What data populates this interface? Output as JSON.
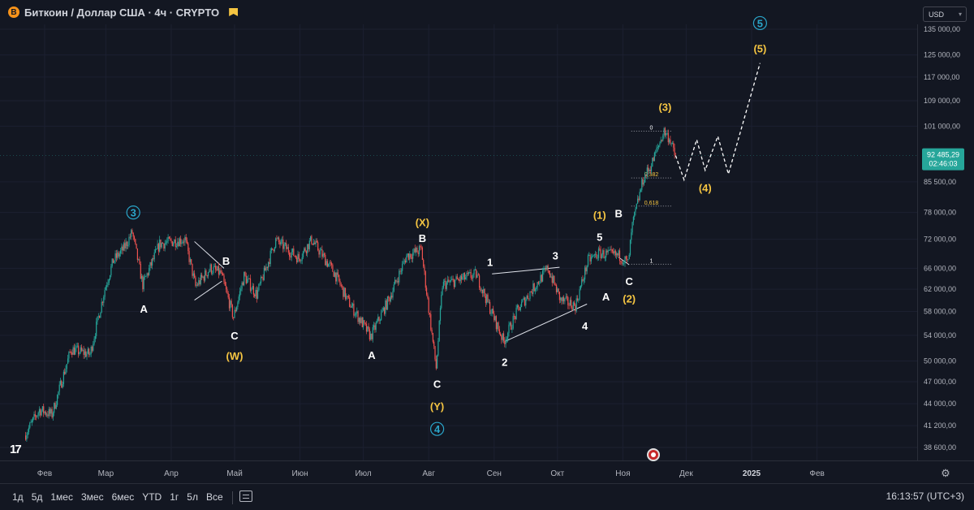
{
  "header": {
    "symbol_icon": "bitcoin-icon",
    "title": "Биткоин / Доллар США · 4ч · CRYPTO",
    "flag_icon": "flag-icon"
  },
  "currency": {
    "label": "USD"
  },
  "bottom_bar": {
    "ranges": [
      "1д",
      "5д",
      "1мес",
      "3мес",
      "6мес",
      "YTD",
      "1г",
      "5л",
      "Все"
    ],
    "clock": "16:13:57 (UTC+3)"
  },
  "colors": {
    "background": "#131722",
    "up": "#26a69a",
    "down": "#ef5350",
    "wave_white": "#ffffff",
    "wave_yellow": "#f5c542",
    "wave_cyan": "#2aa5c9",
    "price_tag": "#26a69a"
  },
  "chart_data": {
    "type": "candlestick",
    "title": "Биткоин / Доллар США · 4ч · CRYPTO",
    "timeframe": "4ч",
    "currency": "USD",
    "y_scale": "log",
    "ylim": [
      37300,
      142000
    ],
    "price_ticks": [
      "135 000,00",
      "125 000,00",
      "117 000,00",
      "109 000,00",
      "101 000,00",
      "85 500,00",
      "78 000,00",
      "72 000,00",
      "66 000,00",
      "62 000,00",
      "58 000,00",
      "54 000,00",
      "50 000,00",
      "47 000,00",
      "44 000,00",
      "41 200,00",
      "38 600,00"
    ],
    "price_tick_values": [
      135000,
      125000,
      117000,
      109000,
      101000,
      85500,
      78000,
      72000,
      66000,
      62000,
      58000,
      54000,
      50000,
      47000,
      44000,
      41200,
      38600
    ],
    "time_labels": [
      "Фев",
      "Мар",
      "Апр",
      "Май",
      "Июн",
      "Июл",
      "Авг",
      "Сен",
      "Окт",
      "Ноя",
      "Дек",
      "2025",
      "Фев"
    ],
    "time_label_dates": [
      "2024-02-01",
      "2024-03-01",
      "2024-04-01",
      "2024-05-01",
      "2024-06-01",
      "2024-07-01",
      "2024-08-01",
      "2024-09-01",
      "2024-10-01",
      "2024-11-01",
      "2024-12-01",
      "2025-01-01",
      "2025-02-01"
    ],
    "current_price": {
      "value": 92485.29,
      "label": "92 485,29",
      "countdown": "02:46:03"
    },
    "price_path": [
      [
        "2024-01-23",
        40000
      ],
      [
        "2024-01-30",
        43200
      ],
      [
        "2024-02-05",
        42600
      ],
      [
        "2024-02-14",
        51800
      ],
      [
        "2024-02-23",
        51000
      ],
      [
        "2024-03-01",
        62000
      ],
      [
        "2024-03-05",
        67500
      ],
      [
        "2024-03-10",
        70000
      ],
      [
        "2024-03-14",
        73500
      ],
      [
        "2024-03-19",
        62800
      ],
      [
        "2024-03-27",
        71000
      ],
      [
        "2024-04-08",
        72000
      ],
      [
        "2024-04-13",
        62500
      ],
      [
        "2024-04-20",
        66000
      ],
      [
        "2024-04-25",
        65000
      ],
      [
        "2024-05-01",
        57000
      ],
      [
        "2024-05-06",
        64500
      ],
      [
        "2024-05-12",
        61000
      ],
      [
        "2024-05-21",
        71800
      ],
      [
        "2024-06-01",
        68000
      ],
      [
        "2024-06-07",
        71900
      ],
      [
        "2024-06-18",
        65000
      ],
      [
        "2024-06-24",
        60000
      ],
      [
        "2024-07-05",
        53800
      ],
      [
        "2024-07-14",
        60500
      ],
      [
        "2024-07-22",
        68500
      ],
      [
        "2024-07-29",
        69800
      ],
      [
        "2024-08-05",
        49000
      ],
      [
        "2024-08-08",
        62800
      ],
      [
        "2024-08-24",
        64800
      ],
      [
        "2024-09-06",
        53000
      ],
      [
        "2024-09-13",
        58500
      ],
      [
        "2024-09-27",
        66000
      ],
      [
        "2024-10-03",
        60000
      ],
      [
        "2024-10-10",
        59000
      ],
      [
        "2024-10-16",
        67500
      ],
      [
        "2024-10-21",
        69000
      ],
      [
        "2024-10-31",
        68500
      ],
      [
        "2024-11-04",
        67000
      ],
      [
        "2024-11-06",
        75000
      ],
      [
        "2024-11-11",
        86000
      ],
      [
        "2024-11-15",
        90000
      ],
      [
        "2024-11-21",
        99500
      ],
      [
        "2024-11-24",
        97000
      ],
      [
        "2024-11-26",
        92485
      ]
    ],
    "projection_path": [
      [
        "2024-11-26",
        92485
      ],
      [
        "2024-11-30",
        86000
      ],
      [
        "2024-12-06",
        97000
      ],
      [
        "2024-12-10",
        88500
      ],
      [
        "2024-12-16",
        98000
      ],
      [
        "2024-12-21",
        87500
      ],
      [
        "2025-01-05",
        122000
      ]
    ],
    "fibonacci": [
      {
        "label": "0",
        "value": 99500
      },
      {
        "label": "0,382",
        "value": 86500
      },
      {
        "label": "0,618",
        "value": 79500
      },
      {
        "label": "1",
        "value": 66800
      }
    ],
    "trend_lines": [
      {
        "from": [
          "2024-04-12",
          71500
        ],
        "to": [
          "2024-04-26",
          66000
        ]
      },
      {
        "from": [
          "2024-04-12",
          60000
        ],
        "to": [
          "2024-04-25",
          63500
        ]
      },
      {
        "from": [
          "2024-08-31",
          64900
        ],
        "to": [
          "2024-10-02",
          66200
        ]
      },
      {
        "from": [
          "2024-09-06",
          53000
        ],
        "to": [
          "2024-10-15",
          59300
        ]
      },
      {
        "from": [
          "2024-10-30",
          68200
        ],
        "to": [
          "2024-11-04",
          66700
        ]
      }
    ],
    "wave_labels": [
      {
        "text": "3",
        "style": "circle",
        "color": "cyan",
        "at": [
          "2024-03-14",
          78000
        ]
      },
      {
        "text": "A",
        "style": "plain",
        "color": "white",
        "at": [
          "2024-03-19",
          58500
        ]
      },
      {
        "text": "B",
        "style": "plain",
        "color": "white",
        "at": [
          "2024-04-27",
          67500
        ]
      },
      {
        "text": "C",
        "style": "plain",
        "color": "white",
        "at": [
          "2024-05-01",
          54000
        ]
      },
      {
        "text": "(W)",
        "style": "plain",
        "color": "yellow",
        "at": [
          "2024-05-01",
          50800
        ]
      },
      {
        "text": "(X)",
        "style": "plain",
        "color": "yellow",
        "at": [
          "2024-07-29",
          75800
        ]
      },
      {
        "text": "B",
        "style": "plain",
        "color": "white",
        "at": [
          "2024-07-29",
          72300
        ]
      },
      {
        "text": "A",
        "style": "plain",
        "color": "white",
        "at": [
          "2024-07-05",
          50900
        ]
      },
      {
        "text": "C",
        "style": "plain",
        "color": "white",
        "at": [
          "2024-08-05",
          46700
        ]
      },
      {
        "text": "(Y)",
        "style": "plain",
        "color": "yellow",
        "at": [
          "2024-08-05",
          43700
        ]
      },
      {
        "text": "4",
        "style": "circle",
        "color": "cyan",
        "at": [
          "2024-08-05",
          40800
        ]
      },
      {
        "text": "1",
        "style": "plain",
        "color": "white",
        "at": [
          "2024-08-30",
          67300
        ]
      },
      {
        "text": "2",
        "style": "plain",
        "color": "white",
        "at": [
          "2024-09-06",
          49900
        ]
      },
      {
        "text": "3",
        "style": "plain",
        "color": "white",
        "at": [
          "2024-09-30",
          68600
        ]
      },
      {
        "text": "4",
        "style": "plain",
        "color": "white",
        "at": [
          "2024-10-14",
          55600
        ]
      },
      {
        "text": "5",
        "style": "plain",
        "color": "white",
        "at": [
          "2024-10-21",
          72500
        ]
      },
      {
        "text": "(1)",
        "style": "plain",
        "color": "yellow",
        "at": [
          "2024-10-21",
          77500
        ]
      },
      {
        "text": "A",
        "style": "plain",
        "color": "white",
        "at": [
          "2024-10-24",
          60700
        ]
      },
      {
        "text": "B",
        "style": "plain",
        "color": "white",
        "at": [
          "2024-10-30",
          77800
        ]
      },
      {
        "text": "C",
        "style": "plain",
        "color": "white",
        "at": [
          "2024-11-04",
          63500
        ]
      },
      {
        "text": "(2)",
        "style": "plain",
        "color": "yellow",
        "at": [
          "2024-11-04",
          60300
        ]
      },
      {
        "text": "(3)",
        "style": "plain",
        "color": "yellow",
        "at": [
          "2024-11-21",
          107000
        ]
      },
      {
        "text": "(4)",
        "style": "plain",
        "color": "yellow",
        "at": [
          "2024-12-10",
          84000
        ]
      },
      {
        "text": "(5)",
        "style": "plain",
        "color": "yellow",
        "at": [
          "2025-01-05",
          127500
        ]
      },
      {
        "text": "5",
        "style": "circle",
        "color": "cyan",
        "at": [
          "2025-01-05",
          137500
        ]
      }
    ]
  }
}
